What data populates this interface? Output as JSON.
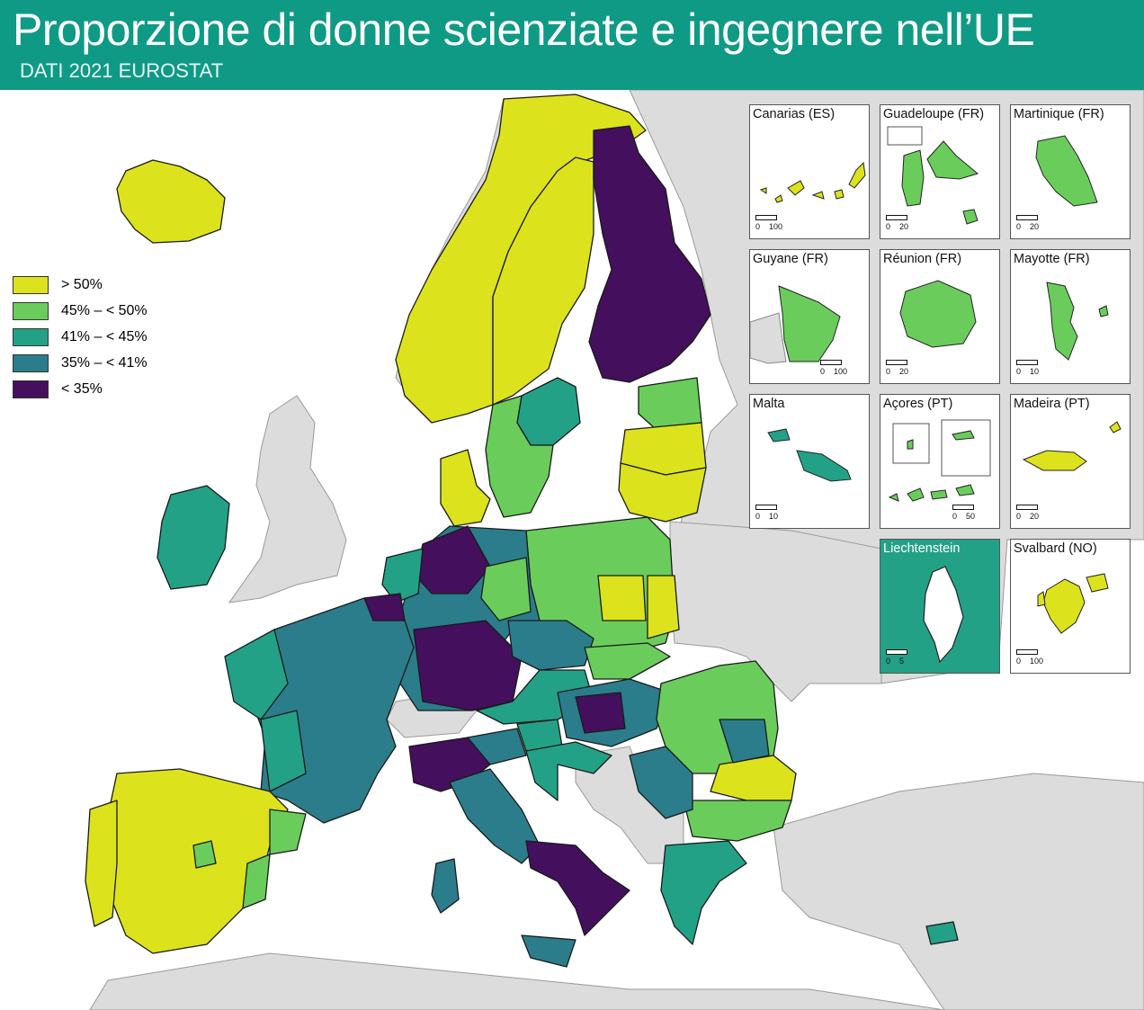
{
  "header": {
    "title": "Proporzione di donne scienziate e ingegnere nell’UE",
    "subtitle": "DATI 2021 EUROSTAT"
  },
  "legend": [
    {
      "label": "> 50%",
      "color": "#dce31d"
    },
    {
      "label": "45% – < 50%",
      "color": "#6acd5b"
    },
    {
      "label": "41% – < 45%",
      "color": "#23a187"
    },
    {
      "label": "35% – < 41%",
      "color": "#2b7d8b"
    },
    {
      "label": "< 35%",
      "color": "#440f5c"
    }
  ],
  "colors": {
    "sea": "#ffffff",
    "non_eu_land": "#dcdcdc",
    "border": "#1a1a1a",
    "header": "#0f9a85"
  },
  "insets": [
    {
      "name": "Canarias (ES)",
      "scale": [
        "0",
        "100"
      ],
      "class": "gt50"
    },
    {
      "name": "Guadeloupe (FR)",
      "scale": [
        "0",
        "20"
      ],
      "class": "45-50"
    },
    {
      "name": "Martinique (FR)",
      "scale": [
        "0",
        "20"
      ],
      "class": "45-50"
    },
    {
      "name": "Guyane (FR)",
      "scale": [
        "0",
        "100"
      ],
      "class": "45-50"
    },
    {
      "name": "Réunion (FR)",
      "scale": [
        "0",
        "20"
      ],
      "class": "45-50"
    },
    {
      "name": "Mayotte (FR)",
      "scale": [
        "0",
        "10"
      ],
      "class": "45-50"
    },
    {
      "name": "Malta",
      "scale": [
        "0",
        "10"
      ],
      "class": "41-45"
    },
    {
      "name": "Açores (PT)",
      "scale": [
        "0",
        "50"
      ],
      "class": "45-50"
    },
    {
      "name": "Madeira (PT)",
      "scale": [
        "0",
        "20"
      ],
      "class": "gt50"
    },
    {
      "name": "Liechtenstein",
      "scale": [
        "0",
        "5"
      ],
      "class": "no-data"
    },
    {
      "name": "Svalbard (NO)",
      "scale": [
        "0",
        "100"
      ],
      "class": "gt50"
    }
  ]
}
